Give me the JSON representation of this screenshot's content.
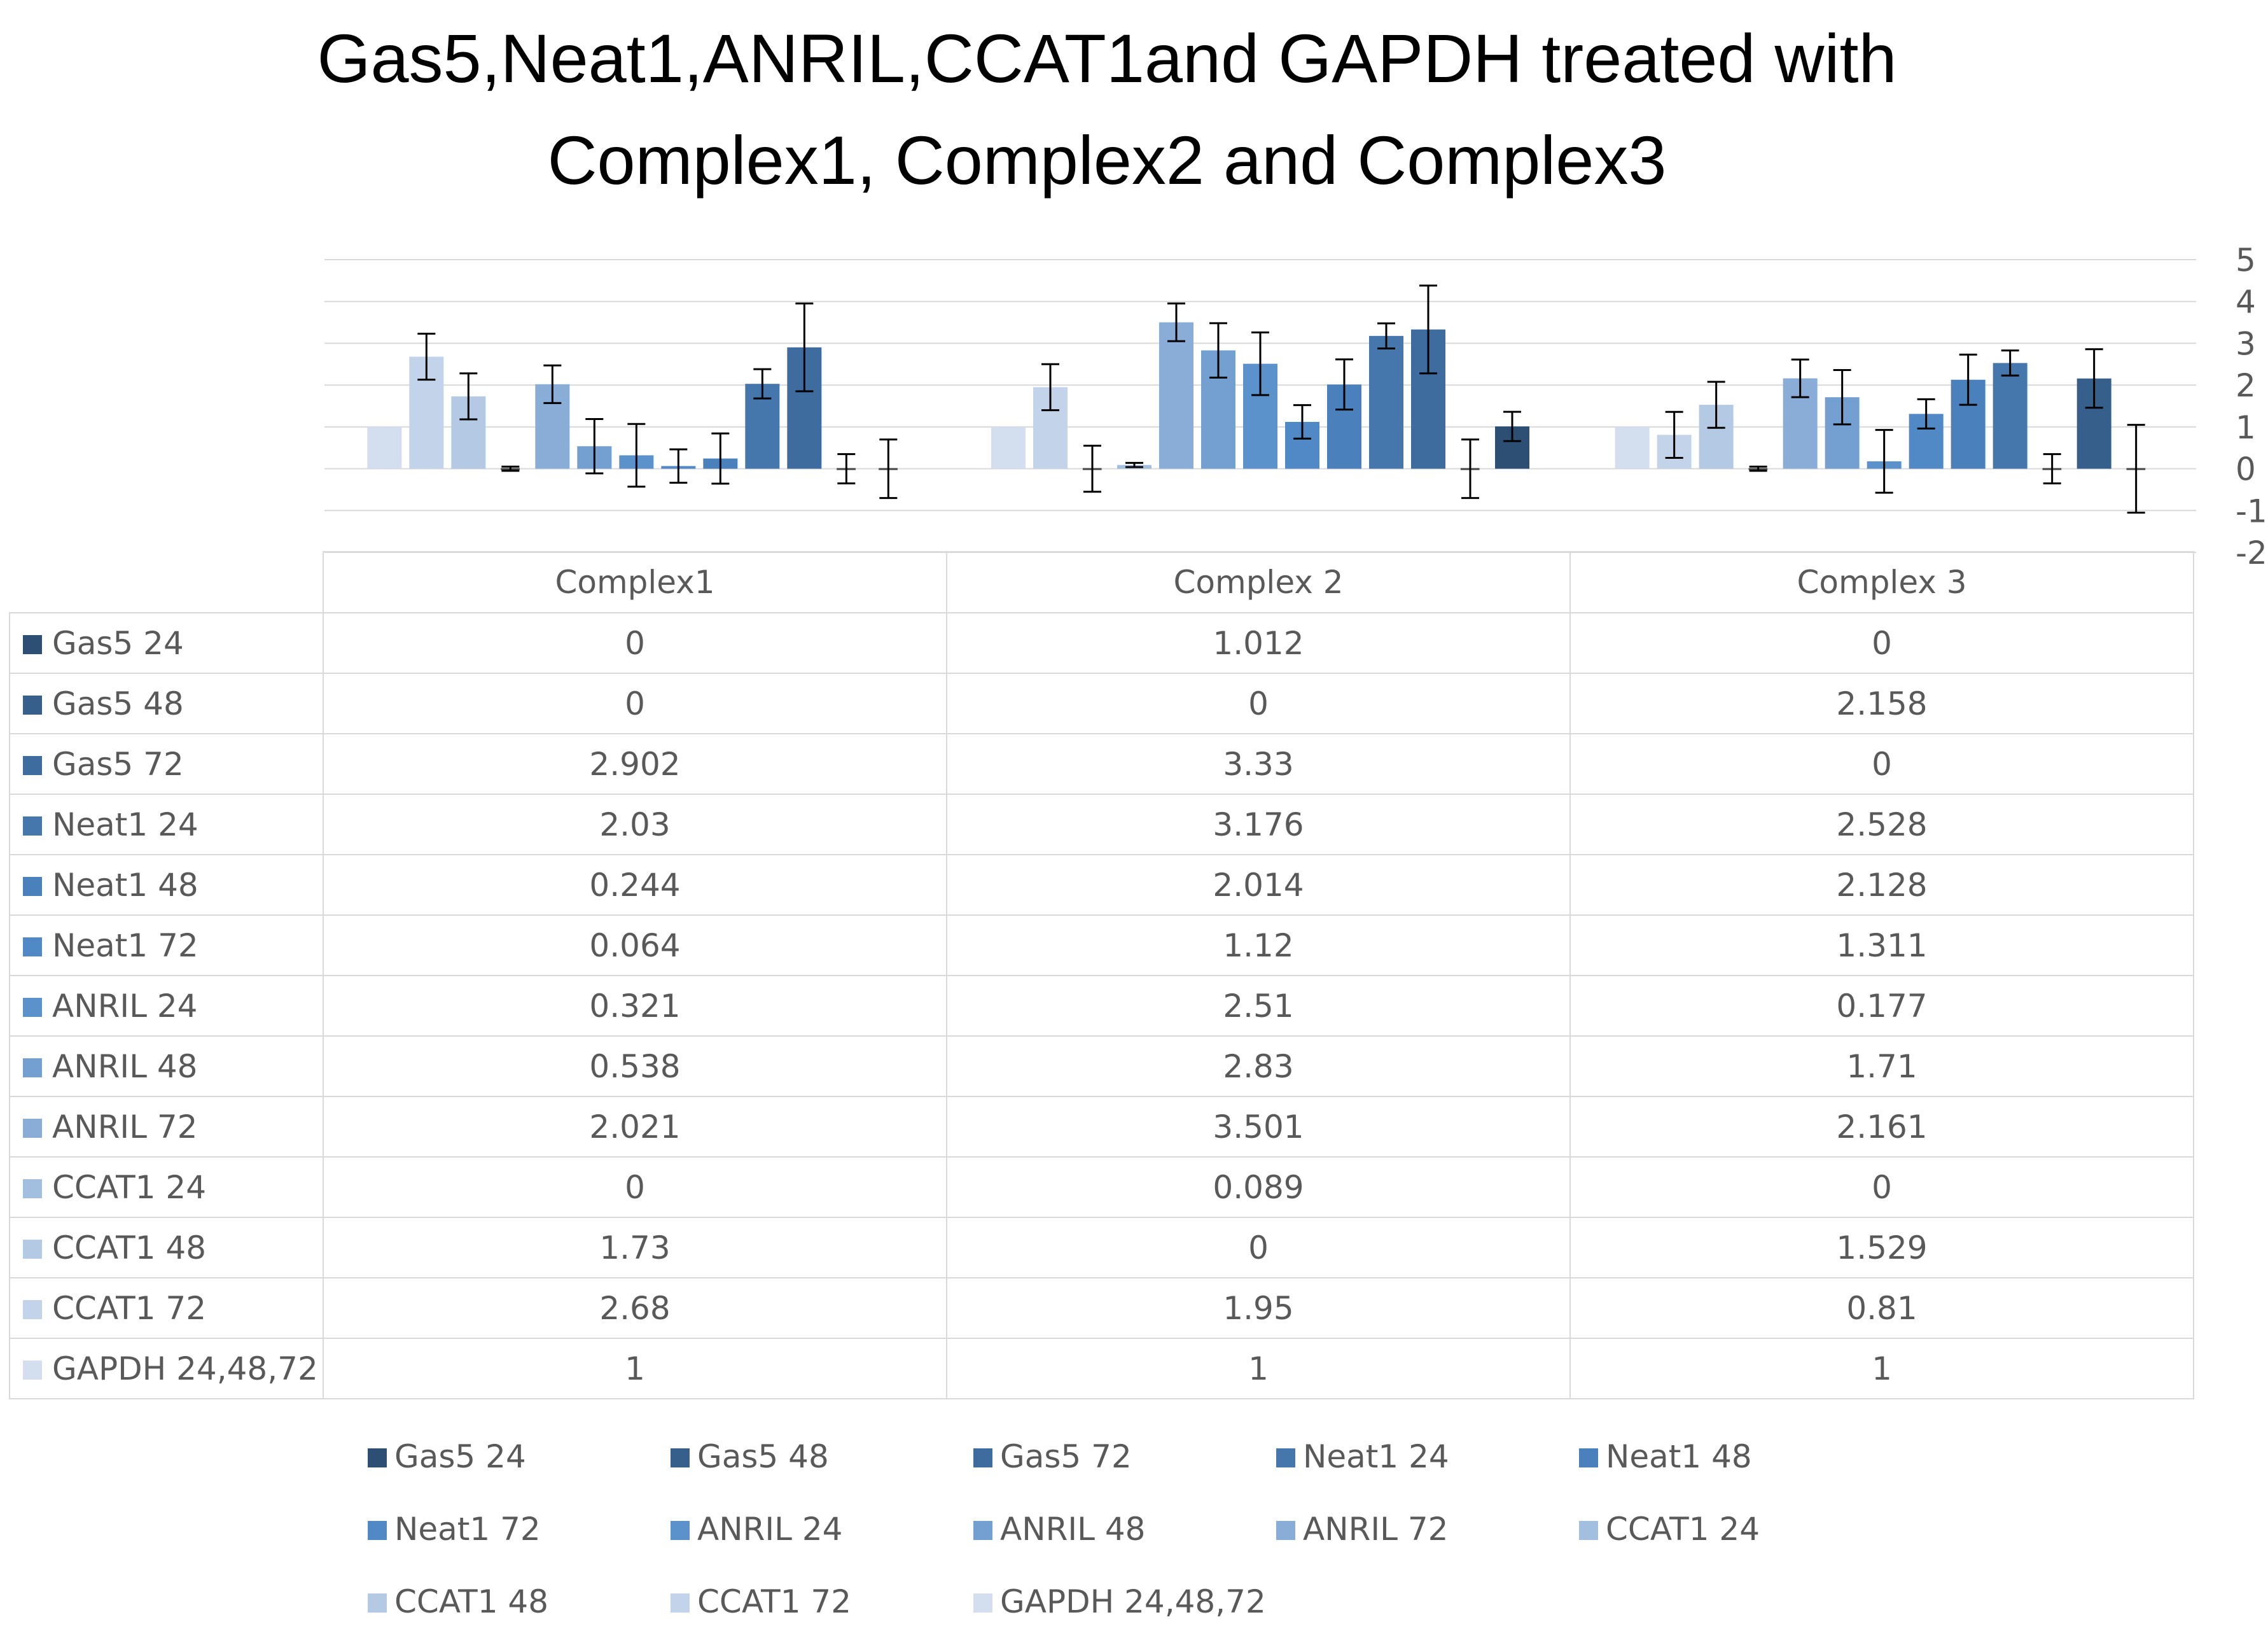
{
  "chart_data": {
    "type": "bar",
    "title_lines": [
      "Gas5,Neat1,ANRIL,CCAT1and GAPDH treated with",
      "Complex1, Complex2 and Complex3"
    ],
    "categories": [
      "Complex1",
      "Complex 2",
      "Complex 3"
    ],
    "series": [
      {
        "name": "Gas5 24",
        "color": "#2e4f74",
        "values": [
          0,
          1.012,
          0
        ],
        "err": [
          0.7,
          0.35,
          1.05
        ]
      },
      {
        "name": "Gas5 48",
        "color": "#375f8c",
        "values": [
          0,
          0,
          2.158
        ],
        "err": [
          0.35,
          0.7,
          0.7
        ]
      },
      {
        "name": "Gas5 72",
        "color": "#3f6c9f",
        "values": [
          2.902,
          3.33,
          0
        ],
        "err": [
          1.05,
          1.05,
          0.35
        ]
      },
      {
        "name": "Neat1  24",
        "color": "#4577ad",
        "values": [
          2.03,
          3.176,
          2.528
        ],
        "err": [
          0.35,
          0.3,
          0.3
        ]
      },
      {
        "name": "Neat1  48",
        "color": "#4a81bc",
        "values": [
          0.244,
          2.014,
          2.128
        ],
        "err": [
          0.6,
          0.6,
          0.6
        ]
      },
      {
        "name": "Neat1  72",
        "color": "#5089c6",
        "values": [
          0.064,
          1.12,
          1.311
        ],
        "err": [
          0.4,
          0.4,
          0.35
        ]
      },
      {
        "name": "ANRIL 24",
        "color": "#5b92cc",
        "values": [
          0.321,
          2.51,
          0.177
        ],
        "err": [
          0.75,
          0.75,
          0.75
        ]
      },
      {
        "name": "ANRIL  48",
        "color": "#739fd1",
        "values": [
          0.538,
          2.83,
          1.71
        ],
        "err": [
          0.65,
          0.65,
          0.65
        ]
      },
      {
        "name": "ANRIL  72",
        "color": "#8aadd7",
        "values": [
          2.021,
          3.501,
          2.161
        ],
        "err": [
          0.45,
          0.45,
          0.45
        ]
      },
      {
        "name": "CCAT1 24",
        "color": "#a3bfdf",
        "values": [
          0,
          0.089,
          0
        ],
        "err": [
          0.05,
          0.05,
          0.05
        ]
      },
      {
        "name": "CCAT1 48",
        "color": "#b3c9e4",
        "values": [
          1.73,
          0,
          1.529
        ],
        "err": [
          0.55,
          0.55,
          0.55
        ]
      },
      {
        "name": "CCAT1 72",
        "color": "#c3d4ea",
        "values": [
          2.68,
          1.95,
          0.81
        ],
        "err": [
          0.55,
          0.55,
          0.55
        ]
      },
      {
        "name": "GAPDH 24,48,72",
        "color": "#d3dfef",
        "values": [
          1,
          1,
          1
        ],
        "err": [
          0,
          0,
          0
        ]
      }
    ],
    "ylim": [
      -2,
      5
    ],
    "yticks": [
      -2,
      -1,
      0,
      1,
      2,
      3,
      4,
      5
    ],
    "grid": true,
    "legend_position": "bottom",
    "data_table": true
  }
}
